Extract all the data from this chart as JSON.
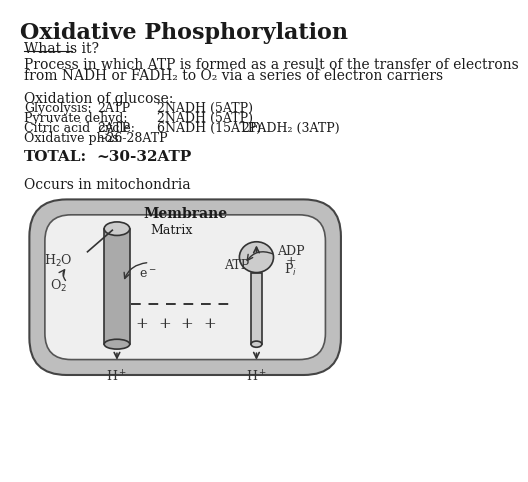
{
  "title": "Oxidative Phosphorylation",
  "title_fontsize": 16,
  "title_fontweight": "bold",
  "bg_color": "#ffffff",
  "text_color": "#1a1a1a",
  "section1_header": "What is it?",
  "section1_body_line1": "Process in which ATP is formed as a result of the transfer of electrons",
  "section1_body_line2": "from NADH or FADH₂ to O₂ via a series of electron carriers",
  "section2_header": "Oxidation of glucose:",
  "table_rows": [
    [
      "Glycolysis:",
      "2ATP",
      "2NADH (5ATP)",
      ""
    ],
    [
      "Pyruvate dehyd:",
      "",
      "2NADH (5ATP)",
      ""
    ],
    [
      "Citric acid  cycle:",
      "2ATP",
      "6NADH (15ATP)",
      "2FADH₂ (3ATP)"
    ],
    [
      "Oxidative phos:",
      "~26-28ATP",
      "",
      ""
    ]
  ],
  "total_label": "TOTAL:",
  "total_value": "~30-32ATP",
  "occurs_text": "Occurs in mitochondria",
  "membrane_label": "Membrane",
  "matrix_label": "Matrix",
  "membrane_bg": "#bebebe",
  "membrane_inner_bg": "#efefef",
  "cylinder_color": "#aaaaaa",
  "cylinder_top_color": "#cccccc",
  "atp_synthase_color": "#cccccc",
  "line_color": "#333333"
}
